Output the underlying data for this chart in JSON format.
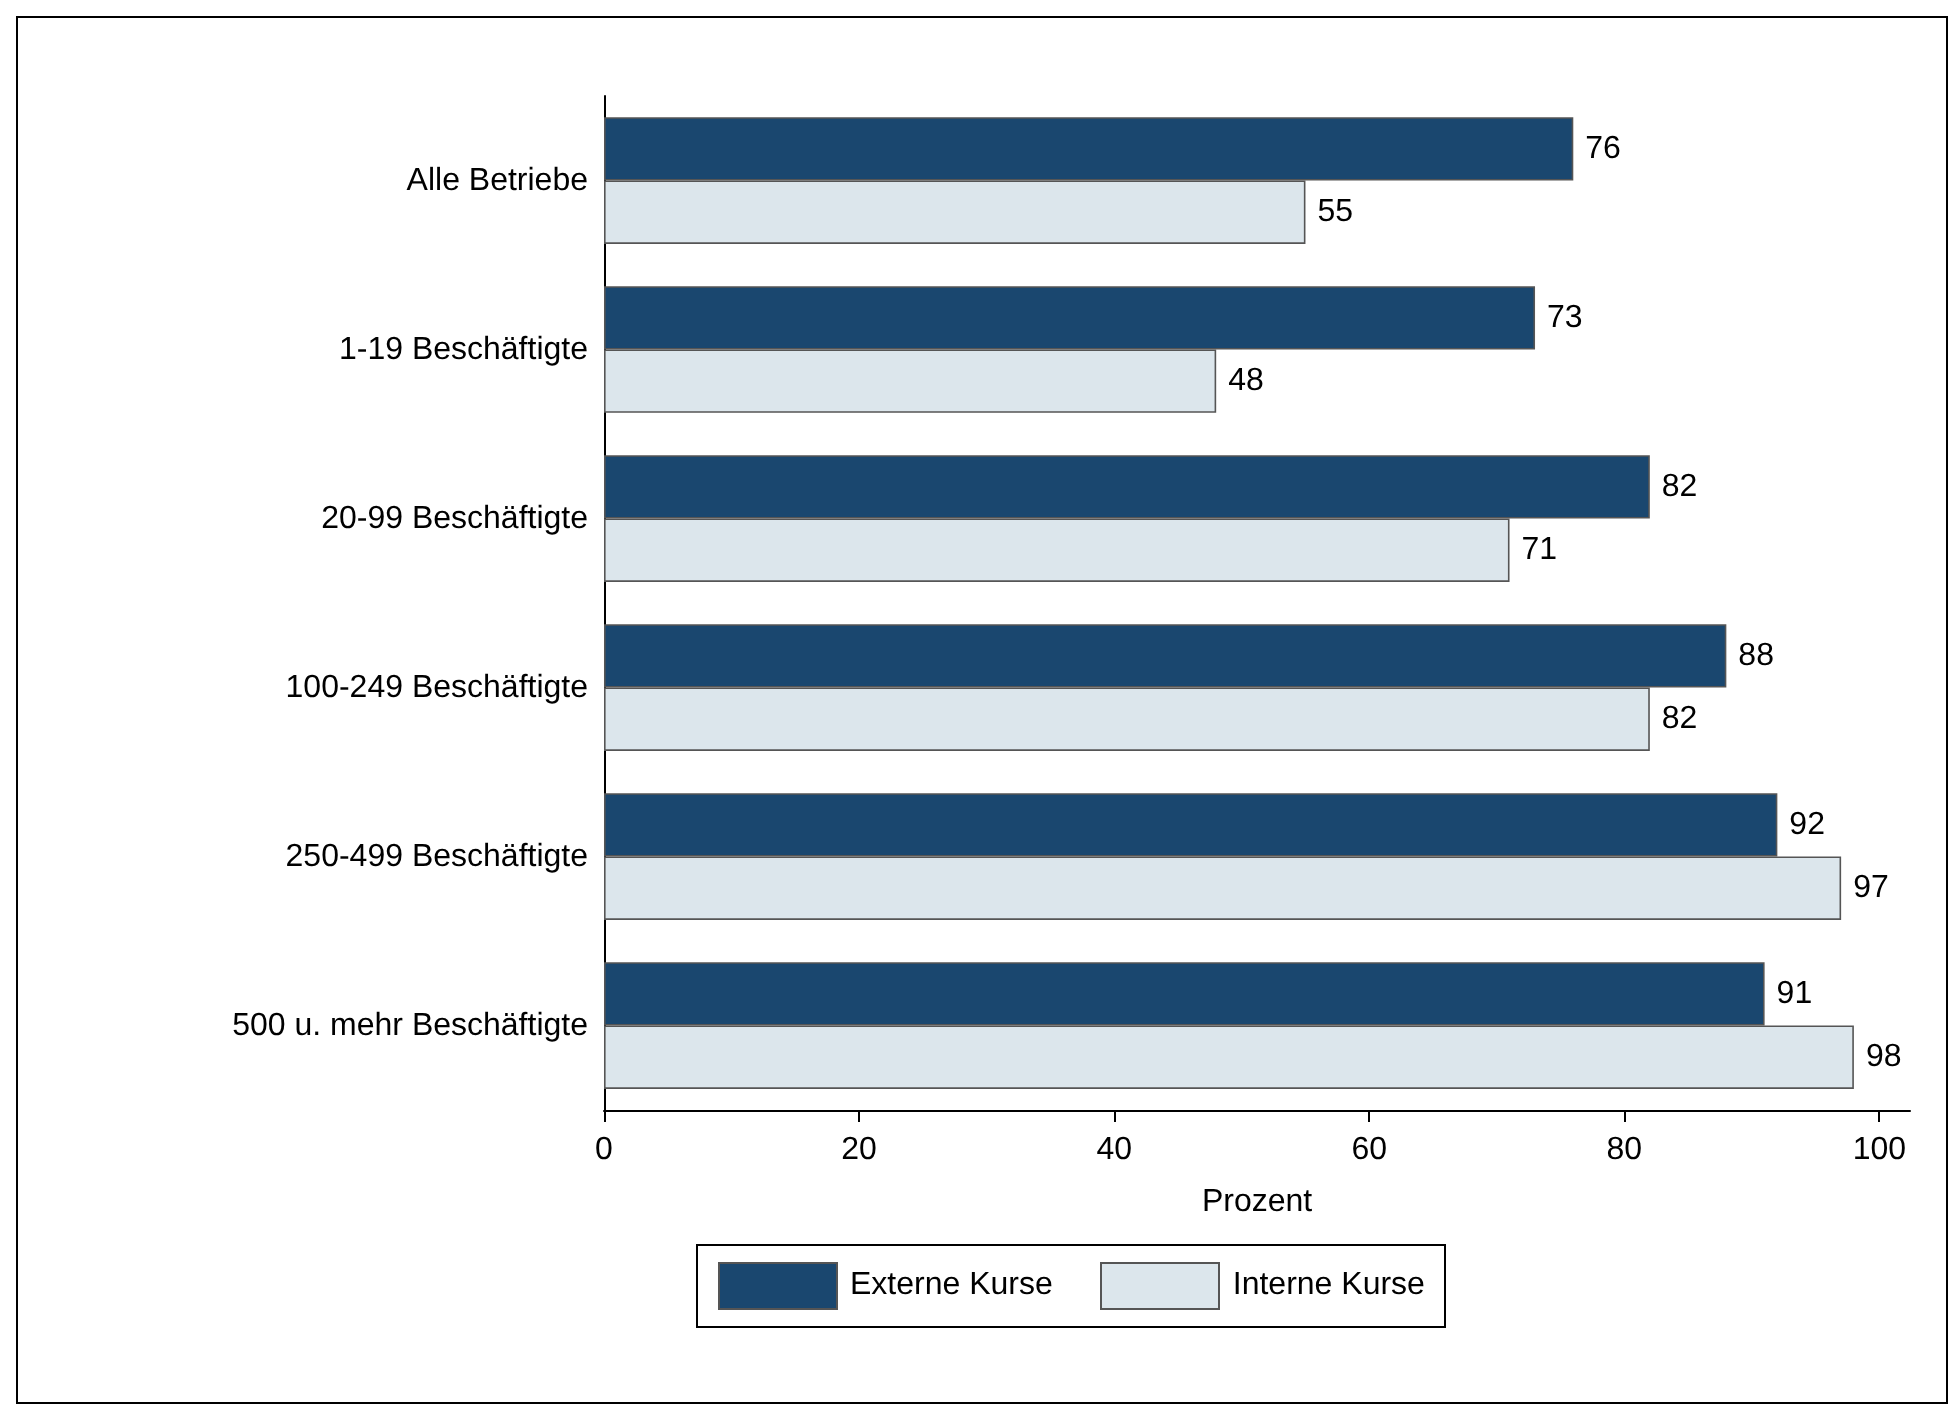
{
  "chart_data": {
    "type": "bar",
    "orientation": "horizontal",
    "xlabel": "Prozent",
    "categories": [
      "Alle Betriebe",
      "1-19 Beschäftigte",
      "20-99 Beschäftigte",
      "100-249 Beschäftigte",
      "250-499 Beschäftigte",
      "500 u. mehr Beschäftigte"
    ],
    "series": [
      {
        "name": "Externe Kurse",
        "color": "#1a476f",
        "values": [
          76,
          73,
          82,
          88,
          92,
          91
        ]
      },
      {
        "name": "Interne Kurse",
        "color": "#dce6ec",
        "values": [
          55,
          48,
          71,
          82,
          97,
          98
        ]
      }
    ],
    "xlim": [
      0,
      102.4
    ],
    "xticks": [
      0,
      20,
      40,
      60,
      80,
      100
    ],
    "data_labels": true,
    "grid": false,
    "legend": "bottom"
  }
}
